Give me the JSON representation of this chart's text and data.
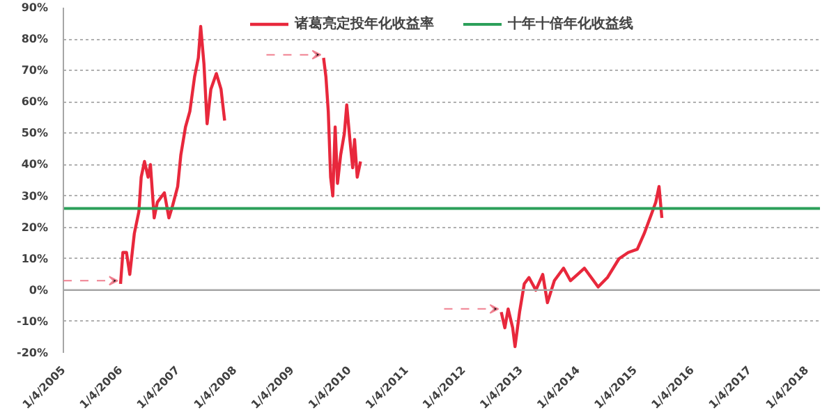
{
  "chart_data": {
    "type": "line",
    "x": [
      "2006-01-04",
      "2006-01-19",
      "2006-02-11",
      "2006-03-04",
      "2006-04-02",
      "2006-05-01",
      "2006-05-16",
      "2006-06-06",
      "2006-06-29",
      "2006-07-14",
      "2006-08-07",
      "2006-08-27",
      "2006-10-11",
      "2006-11-09",
      "2006-12-03",
      "2007-01-04",
      "2007-01-24",
      "2007-02-23",
      "2007-03-23",
      "2007-04-22",
      "2007-05-16",
      "2007-05-31",
      "2007-06-21",
      "2007-07-11",
      "2007-08-04",
      "2007-09-08",
      "2007-10-08",
      "2007-10-31",
      "2008-10-01",
      "2009-07-24",
      "2009-08-08",
      "2009-08-23",
      "2009-09-07",
      "2009-09-21",
      "2009-10-06",
      "2009-10-21",
      "2009-11-10",
      "2009-12-04",
      "2009-12-19",
      "2010-01-08",
      "2010-01-26",
      "2010-02-07",
      "2010-02-24",
      "2010-03-17",
      "2011-06-01",
      "2012-09-01",
      "2012-09-24",
      "2012-10-15",
      "2012-11-13",
      "2012-11-28",
      "2012-12-27",
      "2013-01-26",
      "2013-02-25",
      "2013-04-10",
      "2013-05-24",
      "2013-06-23",
      "2013-08-06",
      "2013-10-04",
      "2013-11-17",
      "2014-01-01",
      "2014-02-14",
      "2014-03-30",
      "2014-05-13",
      "2014-07-11",
      "2014-09-23",
      "2014-11-21",
      "2015-01-18",
      "2015-03-03",
      "2015-04-17",
      "2015-05-16",
      "2015-06-06",
      "2015-06-24"
    ],
    "series": [
      {
        "name": "诸葛亮定投年化收益率",
        "color": "#e8283c",
        "values": [
          2,
          12,
          12,
          5,
          18,
          25,
          36,
          41,
          36,
          40,
          23,
          28,
          31,
          23,
          27,
          33,
          43,
          52,
          57,
          68,
          74,
          84,
          72,
          53,
          64,
          69,
          64,
          54,
          null,
          74,
          68,
          57,
          36,
          30,
          52,
          34,
          43,
          50,
          59,
          48,
          39,
          48,
          36,
          41,
          null,
          -7,
          -12,
          -6,
          -12,
          -18,
          -7,
          2,
          4,
          0,
          5,
          -4,
          3,
          7,
          3,
          5,
          7,
          4,
          1,
          4,
          10,
          12,
          13,
          18,
          24,
          28,
          33,
          23
        ]
      }
    ],
    "xlim": [
      "2005-01-04",
      "2018-03-30"
    ],
    "xticks": [
      {
        "value": "2005-01-04",
        "label": "1/4/2005"
      },
      {
        "value": "2006-01-04",
        "label": "1/4/2006"
      },
      {
        "value": "2007-01-04",
        "label": "1/4/2007"
      },
      {
        "value": "2008-01-04",
        "label": "1/4/2008"
      },
      {
        "value": "2009-01-04",
        "label": "1/4/2009"
      },
      {
        "value": "2010-01-04",
        "label": "1/4/2010"
      },
      {
        "value": "2011-01-04",
        "label": "1/4/2011"
      },
      {
        "value": "2012-01-04",
        "label": "1/4/2012"
      },
      {
        "value": "2013-01-04",
        "label": "1/4/2013"
      },
      {
        "value": "2014-01-04",
        "label": "1/4/2014"
      },
      {
        "value": "2015-01-04",
        "label": "1/4/2015"
      },
      {
        "value": "2016-01-04",
        "label": "1/4/2016"
      },
      {
        "value": "2017-01-04",
        "label": "1/4/2017"
      },
      {
        "value": "2018-01-04",
        "label": "1/4/2018"
      }
    ],
    "ylim": [
      -20,
      90
    ],
    "yticks": [
      {
        "value": -20,
        "label": "-20%"
      },
      {
        "value": -10,
        "label": "-10%"
      },
      {
        "value": 0,
        "label": "0%"
      },
      {
        "value": 10,
        "label": "10%"
      },
      {
        "value": 20,
        "label": "20%"
      },
      {
        "value": 30,
        "label": "30%"
      },
      {
        "value": 40,
        "label": "40%"
      },
      {
        "value": 50,
        "label": "50%"
      },
      {
        "value": 60,
        "label": "60%"
      },
      {
        "value": 70,
        "label": "70%"
      },
      {
        "value": 80,
        "label": "80%"
      },
      {
        "value": 90,
        "label": "90%"
      }
    ],
    "ref_lines": [
      {
        "axis": "y",
        "value": 26,
        "label": "十年十倍年化收益线",
        "color": "#2ca05a"
      },
      {
        "axis": "y",
        "value": 0,
        "color": "#a6a6a6"
      }
    ],
    "grid": "y",
    "legend": "top",
    "marker": "none",
    "line_style": "solid"
  }
}
